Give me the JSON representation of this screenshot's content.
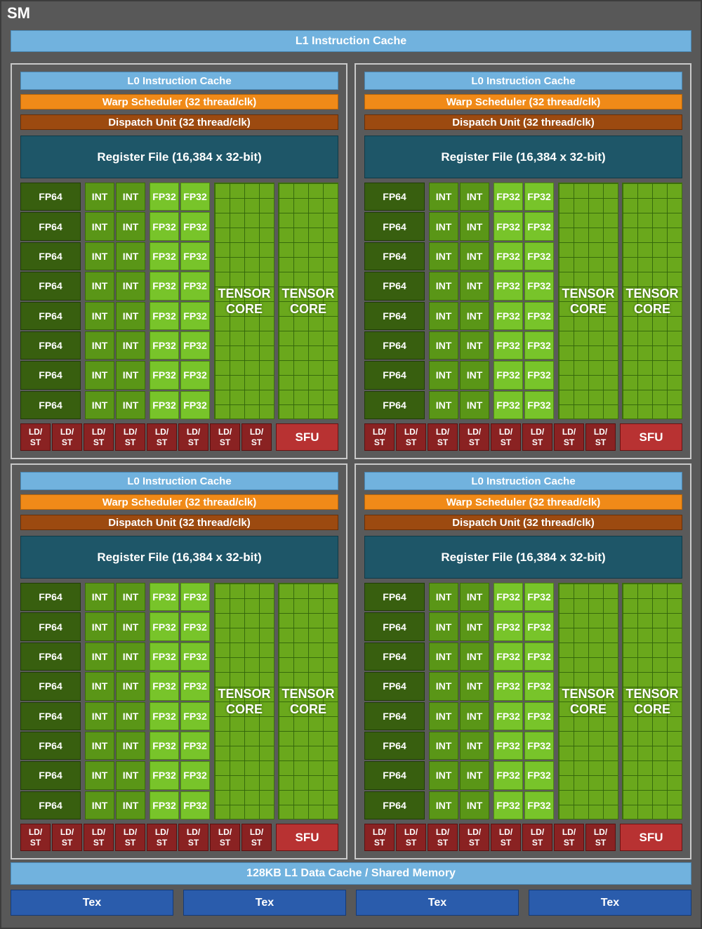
{
  "sm_title": "SM",
  "l1_instruction_cache": "L1 Instruction Cache",
  "l1_data_cache": "128KB L1 Data Cache / Shared Memory",
  "tex_units": [
    "Tex",
    "Tex",
    "Tex",
    "Tex"
  ],
  "partition": {
    "l0_cache": "L0 Instruction Cache",
    "warp_scheduler": "Warp Scheduler (32 thread/clk)",
    "dispatch_unit": "Dispatch Unit (32 thread/clk)",
    "register_file": "Register File (16,384 x 32-bit)",
    "fp64_label": "FP64",
    "int_label": "INT",
    "fp32_label": "FP32",
    "tensor_line1": "TENSOR",
    "tensor_line2": "CORE",
    "ldst_line1": "LD/",
    "ldst_line2": "ST",
    "sfu_label": "SFU"
  },
  "partition_count": 4,
  "rows_per_partition": 8,
  "tensor_cores_per_partition": 2,
  "ldst_per_partition": 8,
  "colors": {
    "sm_bg": "#585858",
    "cache": "#71b2de",
    "warp_scheduler": "#f08a18",
    "dispatch_unit": "#9c4a10",
    "register_file": "#1e5668",
    "fp64": "#385f0f",
    "int": "#5a9617",
    "fp32": "#78c42a",
    "tensor_core": "#6aa81c",
    "ldst": "#8a2222",
    "sfu": "#b83232",
    "tex": "#2a5cac"
  }
}
